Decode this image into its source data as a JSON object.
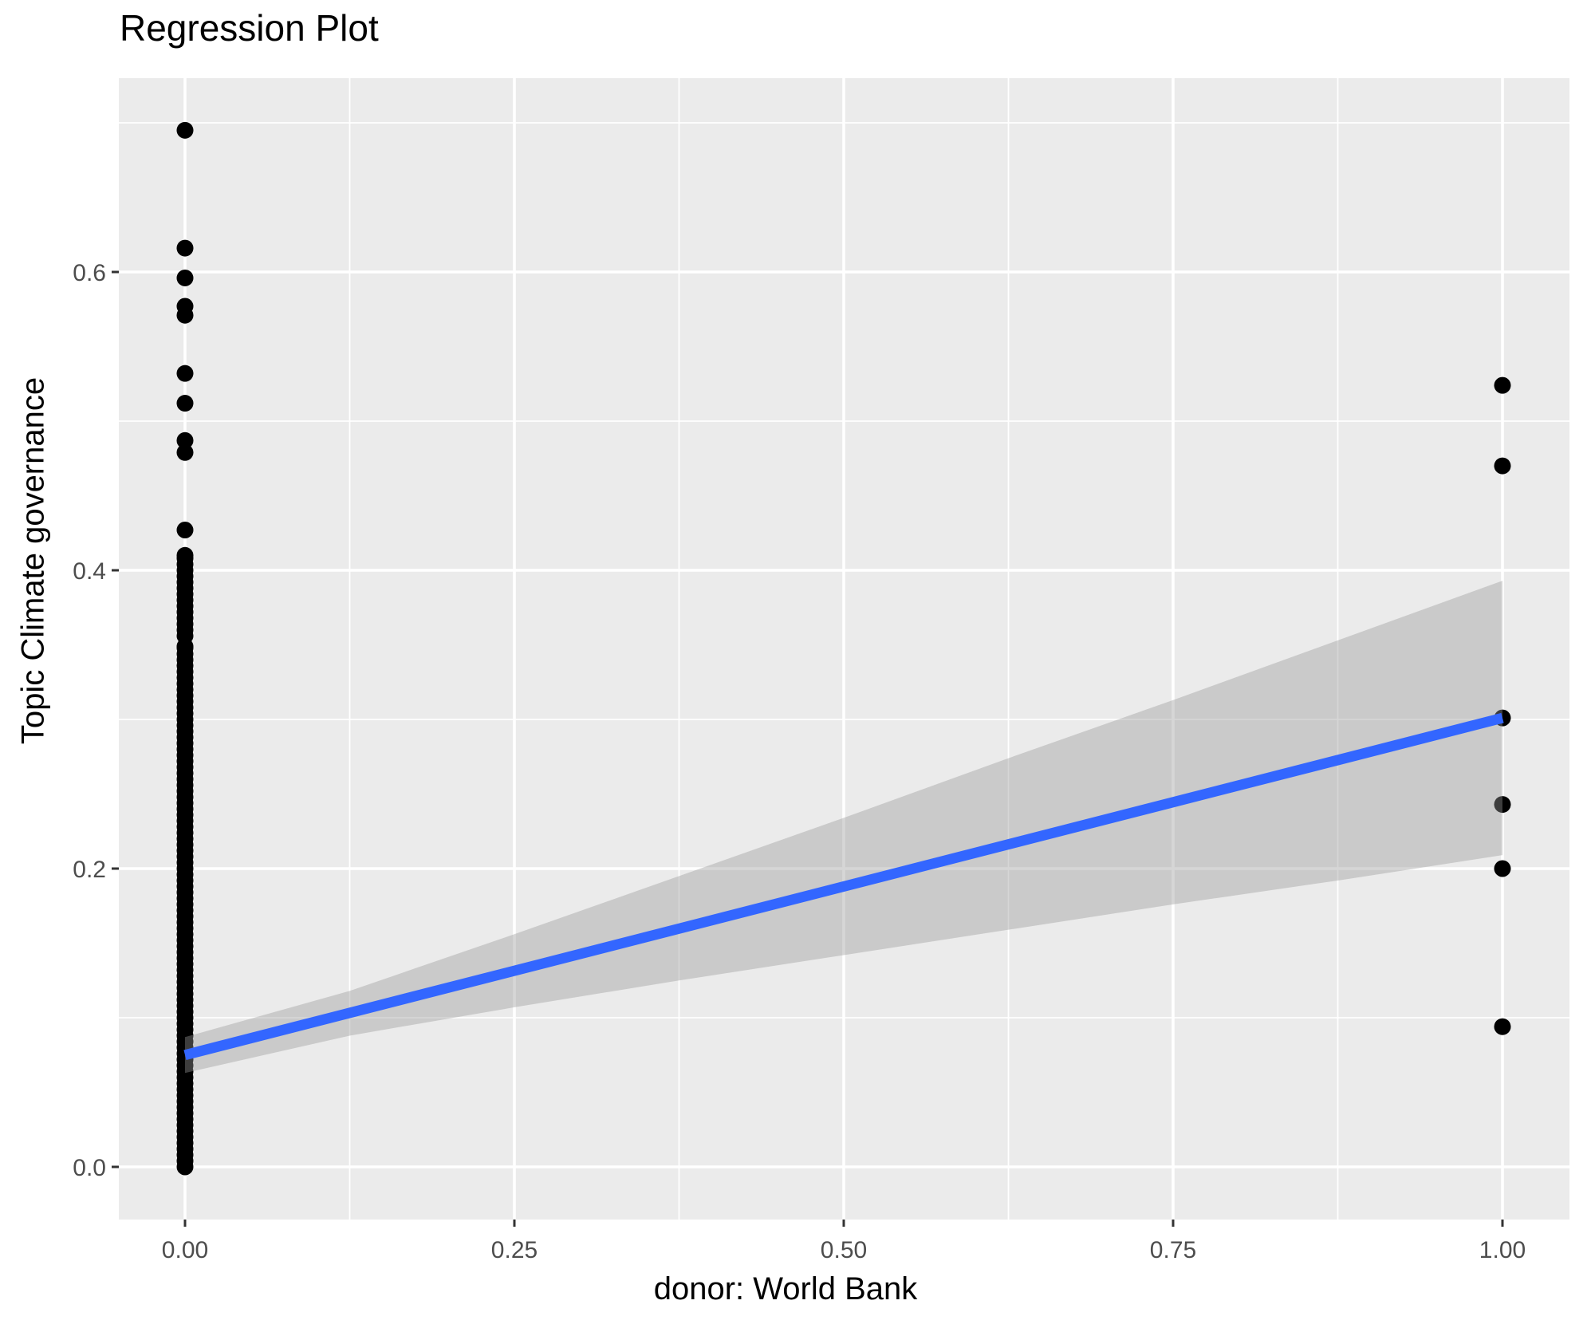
{
  "header": {
    "title": "Regression Plot"
  },
  "chart_data": {
    "type": "scatter",
    "title": "Regression Plot",
    "xlabel": "donor: World Bank",
    "ylabel": "Topic Climate governance",
    "xlim": [
      -0.05,
      1.05
    ],
    "ylim": [
      -0.035,
      0.73
    ],
    "grid": true,
    "legend": "none",
    "x_major_ticks": [
      0,
      0.25,
      0.5,
      0.75,
      1
    ],
    "x_tick_labels": [
      "0.00",
      "0.25",
      "0.50",
      "0.75",
      "1.00"
    ],
    "x_minor_ticks": [
      0.125,
      0.375,
      0.625,
      0.875
    ],
    "y_major_ticks": [
      0,
      0.2,
      0.4,
      0.6
    ],
    "y_tick_labels": [
      "0.0",
      "0.2",
      "0.4",
      "0.6"
    ],
    "y_minor_ticks": [
      0.1,
      0.3,
      0.5,
      0.7
    ],
    "series": [
      {
        "name": "observations-x0-isolated",
        "x_value": 0,
        "y": [
          0.695,
          0.616,
          0.596,
          0.577,
          0.571,
          0.532,
          0.512,
          0.487,
          0.479,
          0.427
        ]
      },
      {
        "name": "observations-x0-dense-strip",
        "x_value": 0,
        "y_ranges": [
          [
            0.356,
            0.41
          ],
          [
            0.0,
            0.349
          ]
        ],
        "range_step": 0.004
      },
      {
        "name": "observations-x1",
        "x_value": 1,
        "y": [
          0.524,
          0.47,
          0.301,
          0.243,
          0.2,
          0.094
        ]
      }
    ],
    "regression_line": {
      "x": [
        0,
        1
      ],
      "y": [
        0.075,
        0.301
      ]
    },
    "confidence_ribbon": {
      "x": [
        0,
        0.125,
        0.25,
        0.375,
        0.5,
        0.625,
        0.75,
        0.875,
        1
      ],
      "lower": [
        0.063,
        0.088,
        0.107,
        0.125,
        0.142,
        0.159,
        0.176,
        0.192,
        0.209
      ],
      "upper": [
        0.087,
        0.118,
        0.156,
        0.195,
        0.234,
        0.274,
        0.313,
        0.353,
        0.393
      ]
    },
    "colors": {
      "panel_background": "#EBEBEB",
      "gridline": "#FFFFFF",
      "point": "#000000",
      "regression_line": "#3366FF",
      "ribbon": "rgba(153,153,153,0.4)",
      "tick_label": "#4D4D4D",
      "tick_mark": "#333333",
      "title_text": "#000000"
    }
  }
}
